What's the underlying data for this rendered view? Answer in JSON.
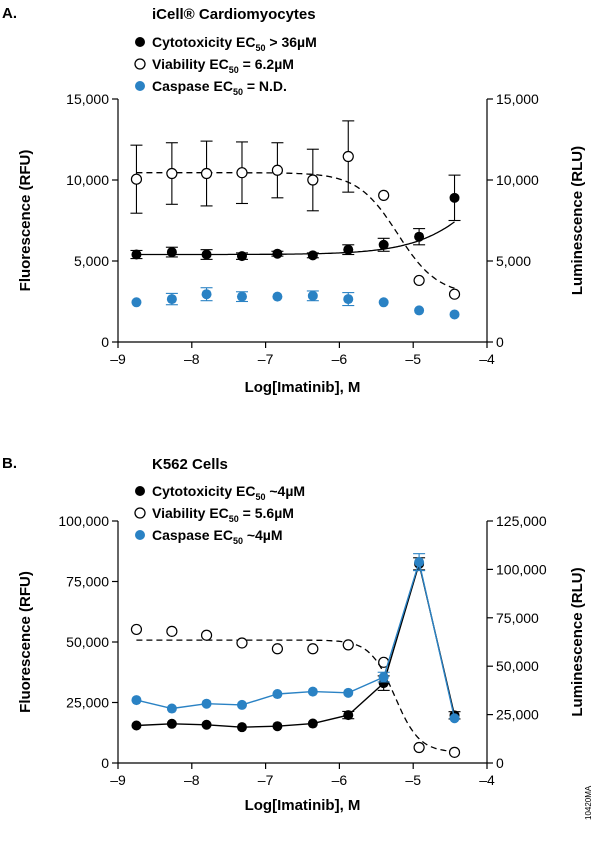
{
  "side_code": "10420MA",
  "chart_data": [
    {
      "type": "scatter",
      "panel_label": "A.",
      "title": "iCell® Cardiomyocytes",
      "xlabel": "Log[Imatinib], M",
      "ylabel_left": "Fluorescence (RFU)",
      "ylabel_right": "Luminescence (RLU)",
      "xlim": [
        -9,
        -4
      ],
      "xticks": [
        -9,
        -8,
        -7,
        -6,
        -5,
        -4
      ],
      "xtick_labels": [
        "–9",
        "–8",
        "–7",
        "–6",
        "–5",
        "–4"
      ],
      "ylim_left": [
        0,
        15000
      ],
      "yticks_left": [
        0,
        5000,
        10000,
        15000
      ],
      "ytick_labels_left": [
        "0",
        "5,000",
        "10,000",
        "15,000"
      ],
      "ylim_right": [
        0,
        15000
      ],
      "yticks_right": [
        0,
        5000,
        10000,
        15000
      ],
      "ytick_labels_right": [
        "0",
        "5,000",
        "10,000",
        "15,000"
      ],
      "legend_position": "top-left",
      "grid": false,
      "x": [
        -8.75,
        -8.27,
        -7.8,
        -7.32,
        -6.84,
        -6.36,
        -5.88,
        -5.4,
        -4.92,
        -4.44
      ],
      "series": [
        {
          "name": "Cytotoxicity EC50 > 36µM",
          "legend_main": "Cytotoxicity EC",
          "legend_sub": "50",
          "legend_rest": " > 36µM",
          "marker": "filled",
          "color": "#000000",
          "axis": "left",
          "values": [
            5400,
            5550,
            5400,
            5300,
            5450,
            5350,
            5700,
            6000,
            6500,
            8900
          ],
          "errors": [
            250,
            300,
            300,
            200,
            150,
            150,
            300,
            400,
            500,
            1400
          ],
          "fit": {
            "type": "sigmoid",
            "style": "solid",
            "bottom": 5400,
            "top": 15000,
            "logEC50": -3.8,
            "hill": 0.9
          }
        },
        {
          "name": "Viability EC50 = 6.2µM",
          "legend_main": "Viability EC",
          "legend_sub": "50",
          "legend_rest": " = 6.2µM",
          "marker": "open",
          "color": "#000000",
          "axis": "right",
          "values": [
            10050,
            10400,
            10400,
            10450,
            10600,
            10000,
            11450,
            9050,
            3800,
            2950
          ],
          "errors": [
            2100,
            1900,
            2000,
            1900,
            1700,
            1900,
            2200,
            0,
            0,
            0
          ],
          "fit": {
            "type": "sigmoid",
            "style": "dashed",
            "bottom": 2900,
            "top": 10450,
            "logEC50": -5.21,
            "hill": 1.6
          }
        },
        {
          "name": "Caspase EC50 = N.D.",
          "legend_main": "Caspase EC",
          "legend_sub": "50",
          "legend_rest": " = N.D.",
          "marker": "filled",
          "color": "#2a82c4",
          "axis": "left",
          "values": [
            2450,
            2650,
            2950,
            2800,
            2800,
            2850,
            2650,
            2450,
            1950,
            1700
          ],
          "errors": [
            0,
            350,
            400,
            300,
            0,
            300,
            400,
            0,
            0,
            0
          ],
          "fit": null
        }
      ]
    },
    {
      "type": "line",
      "panel_label": "B.",
      "title": "K562 Cells",
      "xlabel": "Log[Imatinib], M",
      "ylabel_left": "Fluorescence (RFU)",
      "ylabel_right": "Luminescence (RLU)",
      "xlim": [
        -9,
        -4
      ],
      "xticks": [
        -9,
        -8,
        -7,
        -6,
        -5,
        -4
      ],
      "xtick_labels": [
        "–9",
        "–8",
        "–7",
        "–6",
        "–5",
        "–4"
      ],
      "ylim_left": [
        0,
        100000
      ],
      "yticks_left": [
        0,
        25000,
        50000,
        75000,
        100000
      ],
      "ytick_labels_left": [
        "0",
        "25,000",
        "50,000",
        "75,000",
        "100,000"
      ],
      "ylim_right": [
        0,
        125000
      ],
      "yticks_right": [
        0,
        25000,
        50000,
        75000,
        100000,
        125000
      ],
      "ytick_labels_right": [
        "0",
        "25,000",
        "50,000",
        "75,000",
        "100,000",
        "125,000"
      ],
      "legend_position": "top-left",
      "grid": false,
      "x": [
        -8.75,
        -8.27,
        -7.8,
        -7.32,
        -6.84,
        -6.36,
        -5.88,
        -5.4,
        -4.92,
        -4.44
      ],
      "series": [
        {
          "name": "Cytotoxicity EC50 ~4µM",
          "legend_main": "Cytotoxicity EC",
          "legend_sub": "50",
          "legend_rest": " ~4µM",
          "marker": "filled",
          "color": "#000000",
          "axis": "left",
          "connect": true,
          "values": [
            15500,
            16200,
            15800,
            14800,
            15200,
            16300,
            19800,
            33000,
            82300,
            19700
          ],
          "errors": [
            0,
            0,
            0,
            0,
            0,
            0,
            1500,
            3000,
            2500,
            1500
          ],
          "fit": null
        },
        {
          "name": "Viability EC50 = 5.6µM",
          "legend_main": "Viability EC",
          "legend_sub": "50",
          "legend_rest": " = 5.6µM",
          "marker": "open",
          "color": "#000000",
          "axis": "right",
          "connect": false,
          "values": [
            69000,
            68000,
            66000,
            62000,
            59000,
            59000,
            61000,
            52000,
            8000,
            5500
          ],
          "errors": [
            0,
            0,
            0,
            0,
            0,
            0,
            0,
            0,
            0,
            0
          ],
          "fit": {
            "type": "sigmoid",
            "style": "dashed",
            "bottom": 5500,
            "top": 63500,
            "logEC50": -5.25,
            "hill": 2.6
          }
        },
        {
          "name": "Caspase EC50 ~4µM",
          "legend_main": "Caspase EC",
          "legend_sub": "50",
          "legend_rest": " ~4µM",
          "marker": "filled",
          "color": "#2a82c4",
          "axis": "left",
          "connect": true,
          "values": [
            26000,
            22500,
            24500,
            24000,
            28500,
            29500,
            29000,
            35500,
            83000,
            18500
          ],
          "errors": [
            0,
            0,
            0,
            0,
            0,
            0,
            0,
            2000,
            3500,
            0
          ],
          "fit": null
        }
      ]
    }
  ]
}
